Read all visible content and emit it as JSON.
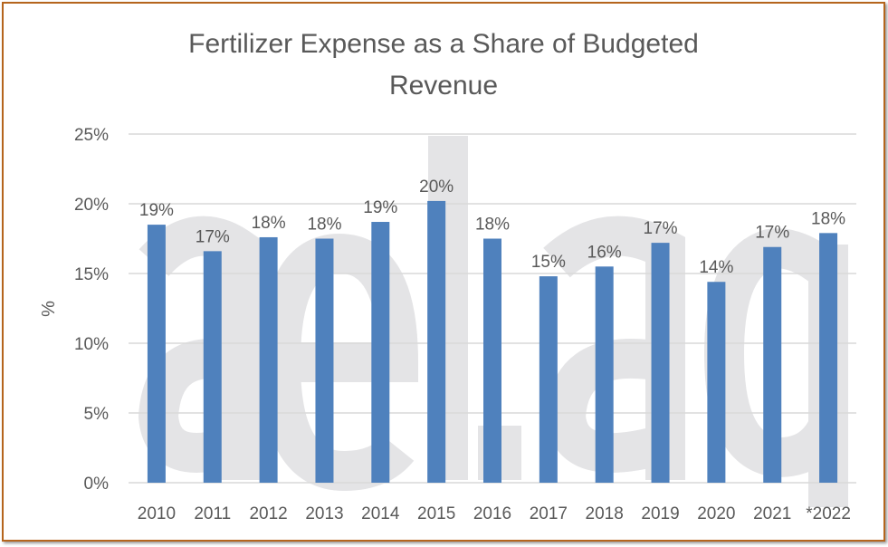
{
  "chart_data": {
    "type": "bar",
    "title": "Fertilizer Expense as a Share of Budgeted Revenue",
    "title_lines": [
      "Fertilizer Expense as a Share of Budgeted",
      "Revenue"
    ],
    "xlabel": "",
    "ylabel": "%",
    "categories": [
      "2010",
      "2011",
      "2012",
      "2013",
      "2014",
      "2015",
      "2016",
      "2017",
      "2018",
      "2019",
      "2020",
      "2021",
      "*2022"
    ],
    "values": [
      18.5,
      16.6,
      17.6,
      17.5,
      18.7,
      20.2,
      17.5,
      14.8,
      15.5,
      17.2,
      14.4,
      16.9,
      17.9
    ],
    "data_labels": [
      "19%",
      "17%",
      "18%",
      "18%",
      "19%",
      "20%",
      "18%",
      "15%",
      "16%",
      "17%",
      "14%",
      "17%",
      "18%"
    ],
    "ylim": [
      0,
      25
    ],
    "yticks": [
      0,
      5,
      10,
      15,
      20,
      25
    ],
    "ytick_labels": [
      "0%",
      "5%",
      "10%",
      "15%",
      "20%",
      "25%"
    ],
    "grid": true,
    "legend": "none",
    "bar_color": "#4f81bd",
    "border_color": "#b5651d",
    "watermark": "ael.ag"
  }
}
